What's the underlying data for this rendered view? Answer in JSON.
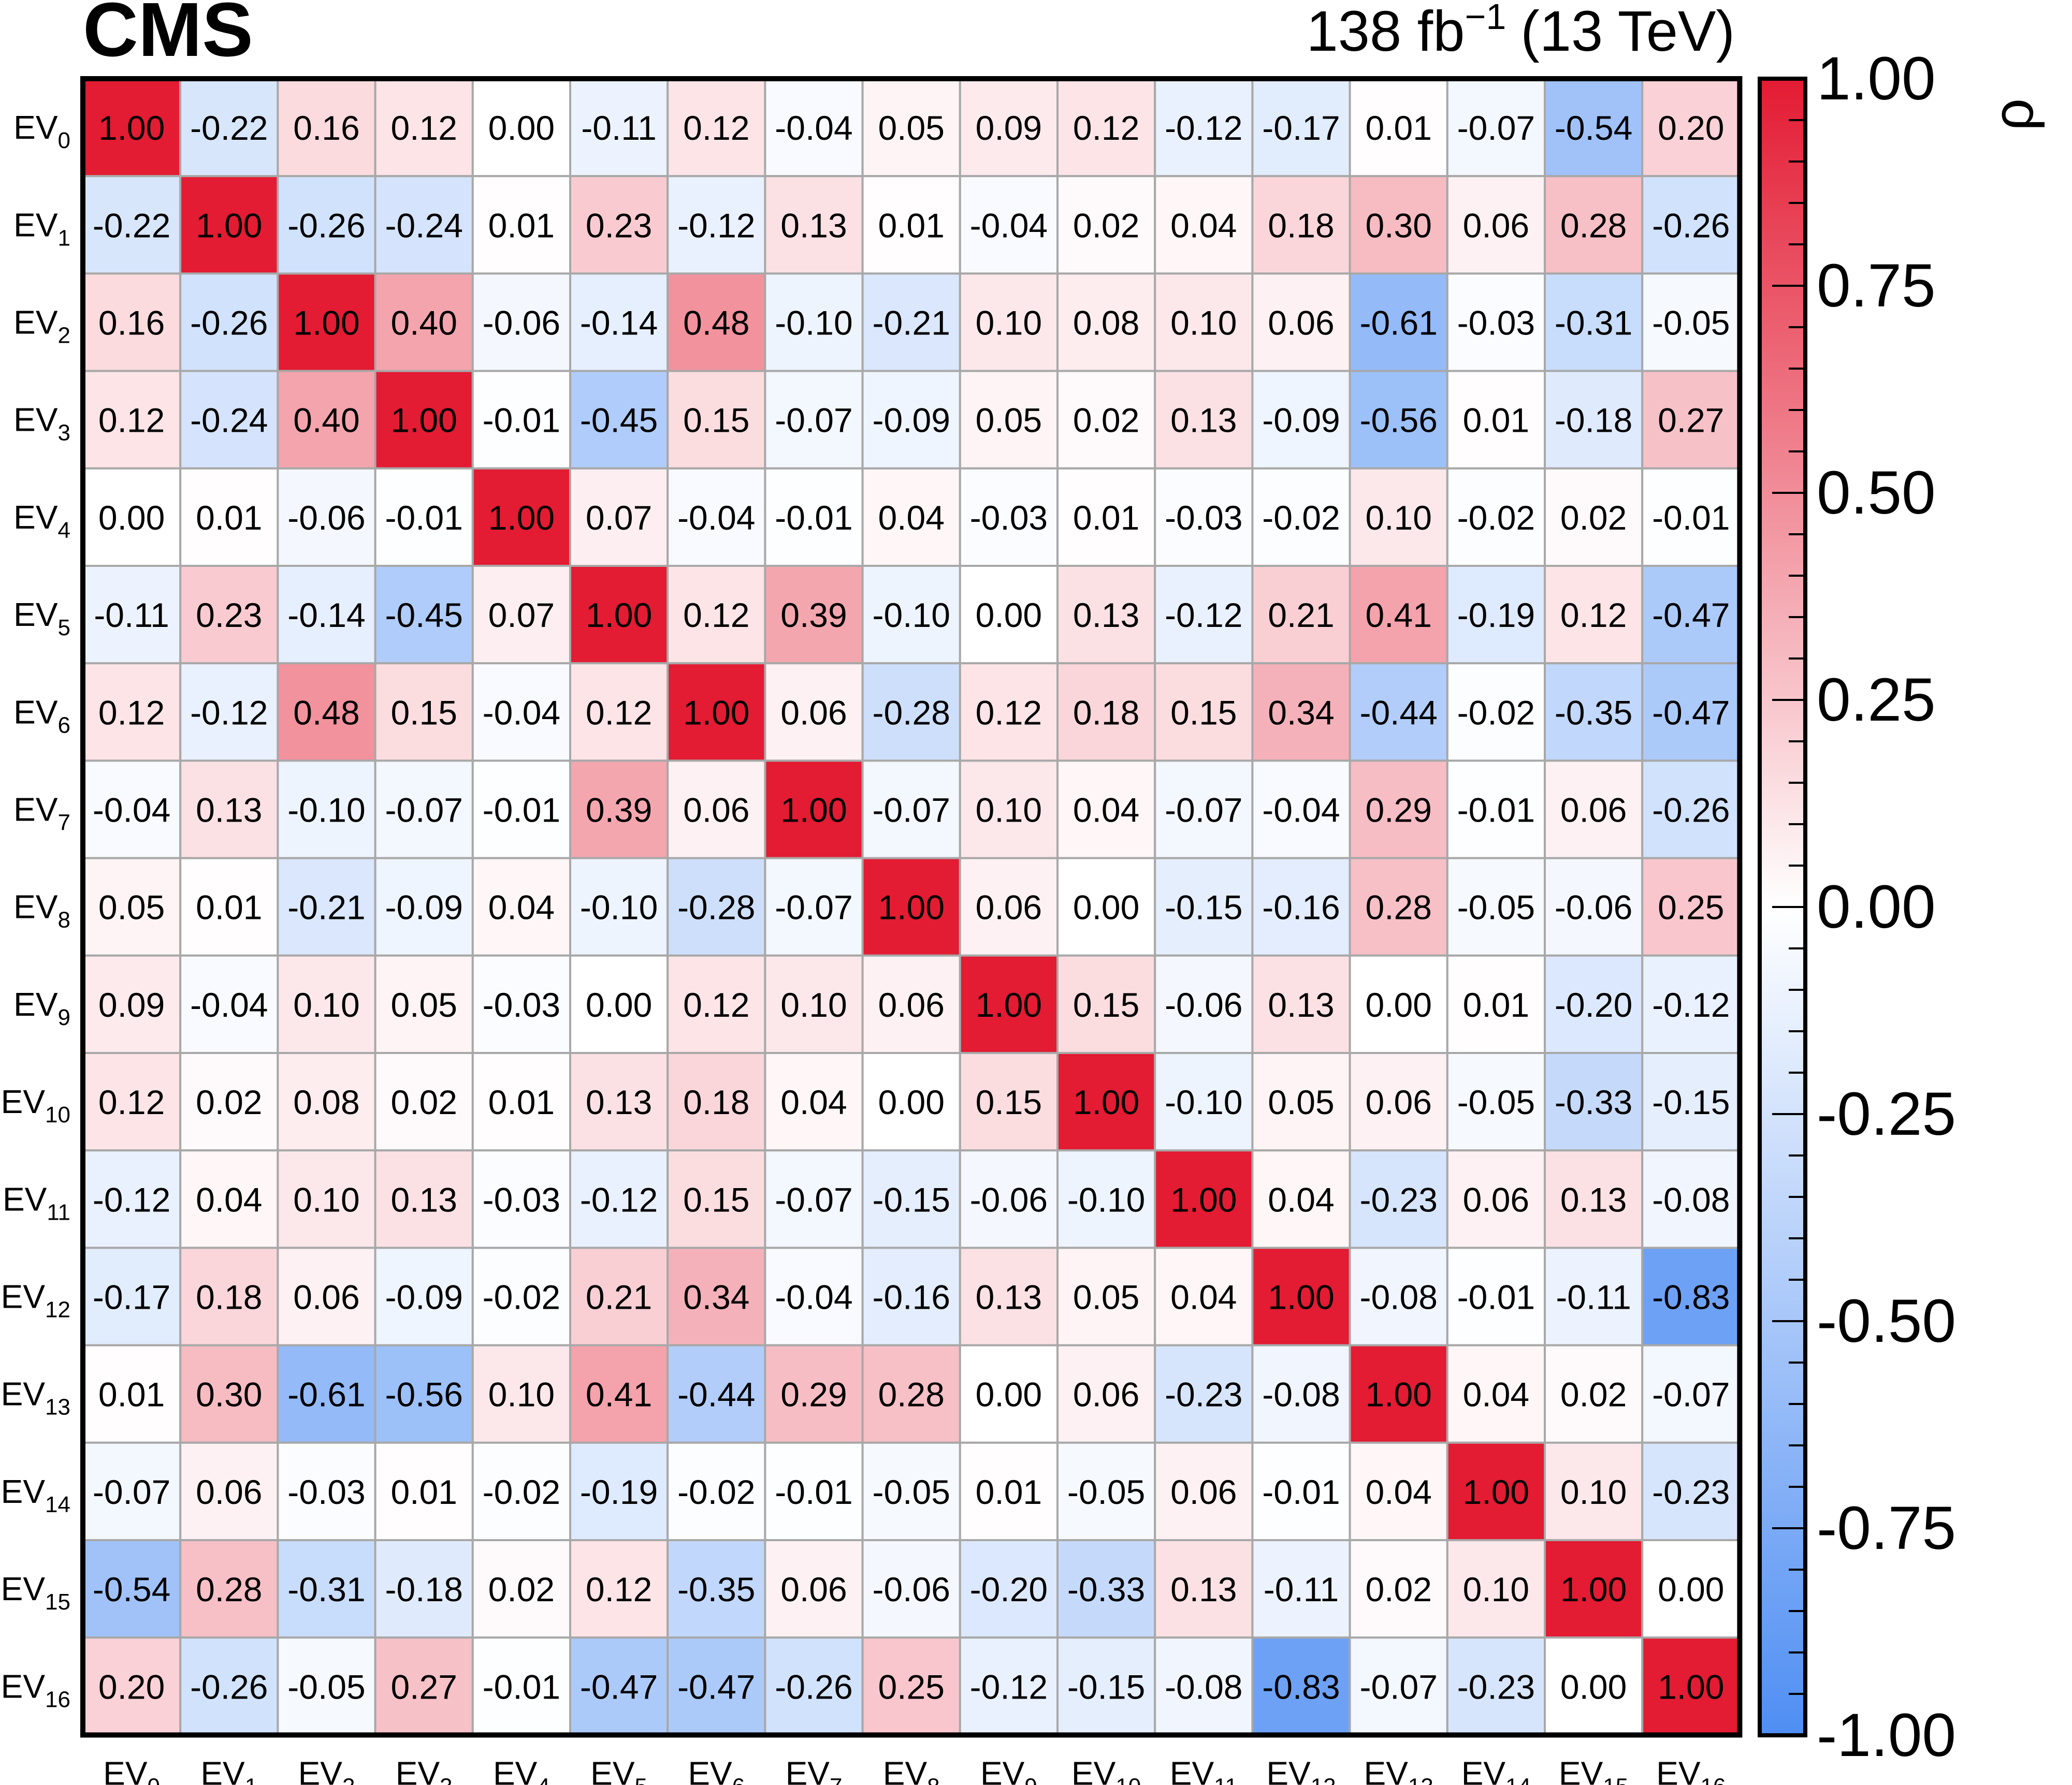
{
  "header": {
    "experiment": "CMS",
    "lumi_value": "138 fb",
    "lumi_exponent": "−1",
    "energy": "(13 TeV)"
  },
  "colorbar": {
    "label": "ρ",
    "ticks": [
      "1.00",
      "0.75",
      "0.50",
      "0.25",
      "0.00",
      "-0.25",
      "-0.50",
      "-0.75",
      "-1.00"
    ],
    "tick_values": [
      1.0,
      0.75,
      0.5,
      0.25,
      0.0,
      -0.25,
      -0.5,
      -0.75,
      -1.0
    ],
    "low_color": "#4f8ef3",
    "mid_color": "#ffffff",
    "high_color": "#e31b33"
  },
  "chart_data": {
    "type": "heatmap",
    "title": "",
    "xlabel": "",
    "ylabel": "",
    "zlabel": "ρ",
    "zlim": [
      -1.0,
      1.0
    ],
    "row_order": "top-to-bottom",
    "labels": [
      {
        "base": "EV",
        "sub": "0"
      },
      {
        "base": "EV",
        "sub": "1"
      },
      {
        "base": "EV",
        "sub": "2"
      },
      {
        "base": "EV",
        "sub": "3"
      },
      {
        "base": "EV",
        "sub": "4"
      },
      {
        "base": "EV",
        "sub": "5"
      },
      {
        "base": "EV",
        "sub": "6"
      },
      {
        "base": "EV",
        "sub": "7"
      },
      {
        "base": "EV",
        "sub": "8"
      },
      {
        "base": "EV",
        "sub": "9"
      },
      {
        "base": "EV",
        "sub": "10"
      },
      {
        "base": "EV",
        "sub": "11"
      },
      {
        "base": "EV",
        "sub": "12"
      },
      {
        "base": "EV",
        "sub": "13"
      },
      {
        "base": "EV",
        "sub": "14"
      },
      {
        "base": "EV",
        "sub": "15"
      },
      {
        "base": "EV",
        "sub": "16"
      }
    ],
    "values": [
      [
        1.0,
        -0.22,
        0.16,
        0.12,
        0.0,
        -0.11,
        0.12,
        -0.04,
        0.05,
        0.09,
        0.12,
        -0.12,
        -0.17,
        0.01,
        -0.07,
        -0.54,
        0.2
      ],
      [
        -0.22,
        1.0,
        -0.26,
        -0.24,
        0.01,
        0.23,
        -0.12,
        0.13,
        0.01,
        -0.04,
        0.02,
        0.04,
        0.18,
        0.3,
        0.06,
        0.28,
        -0.26
      ],
      [
        0.16,
        -0.26,
        1.0,
        0.4,
        -0.06,
        -0.14,
        0.48,
        -0.1,
        -0.21,
        0.1,
        0.08,
        0.1,
        0.06,
        -0.61,
        -0.03,
        -0.31,
        -0.05
      ],
      [
        0.12,
        -0.24,
        0.4,
        1.0,
        -0.01,
        -0.45,
        0.15,
        -0.07,
        -0.09,
        0.05,
        0.02,
        0.13,
        -0.09,
        -0.56,
        0.01,
        -0.18,
        0.27
      ],
      [
        0.0,
        0.01,
        -0.06,
        -0.01,
        1.0,
        0.07,
        -0.04,
        -0.01,
        0.04,
        -0.03,
        0.01,
        -0.03,
        -0.02,
        0.1,
        -0.02,
        0.02,
        -0.01
      ],
      [
        -0.11,
        0.23,
        -0.14,
        -0.45,
        0.07,
        1.0,
        0.12,
        0.39,
        -0.1,
        0.0,
        0.13,
        -0.12,
        0.21,
        0.41,
        -0.19,
        0.12,
        -0.47
      ],
      [
        0.12,
        -0.12,
        0.48,
        0.15,
        -0.04,
        0.12,
        1.0,
        0.06,
        -0.28,
        0.12,
        0.18,
        0.15,
        0.34,
        -0.44,
        -0.02,
        -0.35,
        -0.47
      ],
      [
        -0.04,
        0.13,
        -0.1,
        -0.07,
        -0.01,
        0.39,
        0.06,
        1.0,
        -0.07,
        0.1,
        0.04,
        -0.07,
        -0.04,
        0.29,
        -0.01,
        0.06,
        -0.26
      ],
      [
        0.05,
        0.01,
        -0.21,
        -0.09,
        0.04,
        -0.1,
        -0.28,
        -0.07,
        1.0,
        0.06,
        0.0,
        -0.15,
        -0.16,
        0.28,
        -0.05,
        -0.06,
        0.25
      ],
      [
        0.09,
        -0.04,
        0.1,
        0.05,
        -0.03,
        0.0,
        0.12,
        0.1,
        0.06,
        1.0,
        0.15,
        -0.06,
        0.13,
        0.0,
        0.01,
        -0.2,
        -0.12
      ],
      [
        0.12,
        0.02,
        0.08,
        0.02,
        0.01,
        0.13,
        0.18,
        0.04,
        0.0,
        0.15,
        1.0,
        -0.1,
        0.05,
        0.06,
        -0.05,
        -0.33,
        -0.15
      ],
      [
        -0.12,
        0.04,
        0.1,
        0.13,
        -0.03,
        -0.12,
        0.15,
        -0.07,
        -0.15,
        -0.06,
        -0.1,
        1.0,
        0.04,
        -0.23,
        0.06,
        0.13,
        -0.08
      ],
      [
        -0.17,
        0.18,
        0.06,
        -0.09,
        -0.02,
        0.21,
        0.34,
        -0.04,
        -0.16,
        0.13,
        0.05,
        0.04,
        1.0,
        -0.08,
        -0.01,
        -0.11,
        -0.83
      ],
      [
        0.01,
        0.3,
        -0.61,
        -0.56,
        0.1,
        0.41,
        -0.44,
        0.29,
        0.28,
        0.0,
        0.06,
        -0.23,
        -0.08,
        1.0,
        0.04,
        0.02,
        -0.07
      ],
      [
        -0.07,
        0.06,
        -0.03,
        0.01,
        -0.02,
        -0.19,
        -0.02,
        -0.01,
        -0.05,
        0.01,
        -0.05,
        0.06,
        -0.01,
        0.04,
        1.0,
        0.1,
        -0.23
      ],
      [
        -0.54,
        0.28,
        -0.31,
        -0.18,
        0.02,
        0.12,
        -0.35,
        0.06,
        -0.06,
        -0.2,
        -0.33,
        0.13,
        -0.11,
        0.02,
        0.1,
        1.0,
        0.0
      ],
      [
        0.2,
        -0.26,
        -0.05,
        0.27,
        -0.01,
        -0.47,
        -0.47,
        -0.26,
        0.25,
        -0.12,
        -0.15,
        -0.08,
        -0.83,
        -0.07,
        -0.23,
        0.0,
        1.0
      ]
    ]
  }
}
